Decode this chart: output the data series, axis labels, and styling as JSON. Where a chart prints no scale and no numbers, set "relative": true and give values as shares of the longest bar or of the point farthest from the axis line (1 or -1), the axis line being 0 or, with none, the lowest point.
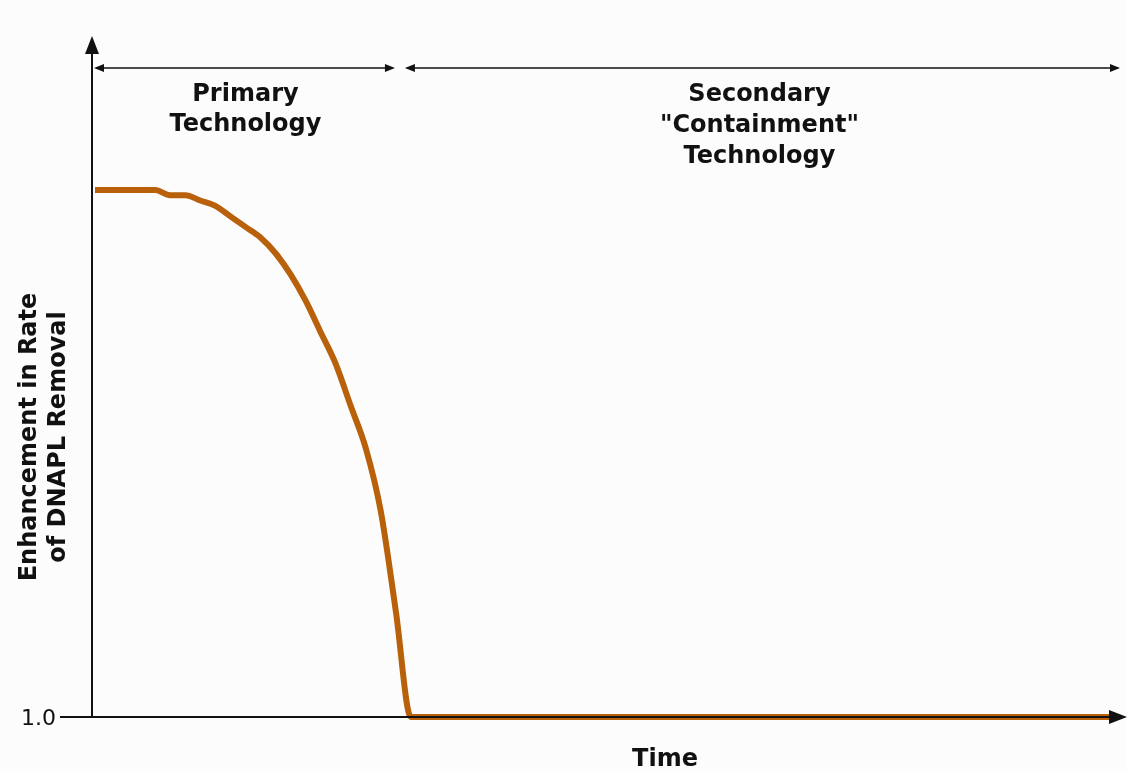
{
  "chart_data": {
    "type": "line",
    "relative": true,
    "xlabel": "Time",
    "ylabel": "Enhancement in Rate\nof DNAPL Removal",
    "annotations": [
      "Primary\nTechnology",
      "Secondary\n\"Containment\"\nTechnology",
      "1.0"
    ],
    "categories": [
      null,
      null,
      null,
      null,
      null,
      null,
      null,
      null,
      null,
      null,
      null,
      null,
      null,
      null,
      null,
      null,
      null,
      null,
      null,
      null,
      null,
      null,
      null,
      null,
      null,
      null,
      null,
      null,
      null,
      null,
      null,
      null,
      null,
      null,
      null,
      null,
      null,
      null,
      null,
      null,
      null,
      null,
      null,
      null,
      null,
      null,
      null,
      null,
      null,
      null,
      null,
      null,
      null,
      null,
      null,
      null,
      null,
      null,
      null,
      null,
      null,
      null,
      null,
      null,
      null,
      null,
      null,
      null,
      null
    ],
    "series": [
      {
        "color": "#b8600a",
        "values": [
          1,
          1,
          1,
          1,
          1,
          0.99,
          0.99,
          0.98,
          0.97,
          0.95,
          0.93,
          0.91,
          0.88,
          0.84,
          0.79,
          0.73,
          0.67,
          0.59,
          0.51,
          0.39,
          0.2,
          0,
          0,
          0,
          0,
          0,
          0,
          0,
          0,
          0,
          0,
          0,
          0,
          0,
          0,
          0,
          0,
          0,
          0,
          0,
          0,
          0,
          0,
          0,
          0,
          0,
          0,
          0,
          0,
          0,
          0,
          0,
          0,
          0,
          0,
          0,
          0,
          0,
          0,
          0,
          0,
          0,
          0,
          0,
          0,
          0,
          0,
          0,
          0
        ]
      }
    ],
    "marker": "none",
    "line_style": "solid",
    "grid": false
  }
}
